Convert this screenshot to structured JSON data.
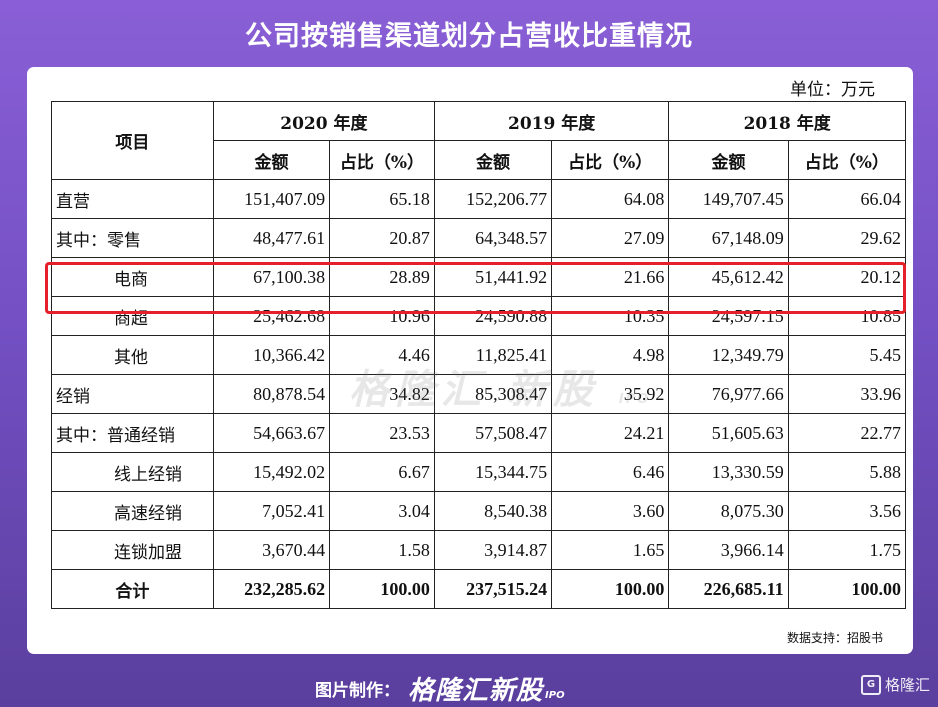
{
  "title": "公司按销售渠道划分占营收比重情况",
  "unit": "单位：万元",
  "table": {
    "years": [
      "2020 年度",
      "2019 年度",
      "2018 年度"
    ],
    "item_header": "项目",
    "amount_header": "金额",
    "pct_header": "占比（%）",
    "rows": [
      {
        "label": "直营",
        "values": [
          "151,407.09",
          "65.18",
          "152,206.77",
          "64.08",
          "149,707.45",
          "66.04"
        ]
      },
      {
        "label": "其中：零售",
        "values": [
          "48,477.61",
          "20.87",
          "64,348.57",
          "27.09",
          "67,148.09",
          "29.62"
        ]
      },
      {
        "label": "电商",
        "values": [
          "67,100.38",
          "28.89",
          "51,441.92",
          "21.66",
          "45,612.42",
          "20.12"
        ]
      },
      {
        "label": "商超",
        "values": [
          "25,462.68",
          "10.96",
          "24,590.88",
          "10.35",
          "24,597.15",
          "10.85"
        ]
      },
      {
        "label": "其他",
        "values": [
          "10,366.42",
          "4.46",
          "11,825.41",
          "4.98",
          "12,349.79",
          "5.45"
        ]
      },
      {
        "label": "经销",
        "values": [
          "80,878.54",
          "34.82",
          "85,308.47",
          "35.92",
          "76,977.66",
          "33.96"
        ]
      },
      {
        "label": "其中：普通经销",
        "values": [
          "54,663.67",
          "23.53",
          "57,508.47",
          "24.21",
          "51,605.63",
          "22.77"
        ]
      },
      {
        "label": "线上经销",
        "values": [
          "15,492.02",
          "6.67",
          "15,344.75",
          "6.46",
          "13,330.59",
          "5.88"
        ]
      },
      {
        "label": "高速经销",
        "values": [
          "7,052.41",
          "3.04",
          "8,540.38",
          "3.60",
          "8,075.30",
          "3.56"
        ]
      },
      {
        "label": "连锁加盟",
        "values": [
          "3,670.44",
          "1.58",
          "3,914.87",
          "1.65",
          "3,966.14",
          "1.75"
        ]
      },
      {
        "label": "合计",
        "values": [
          "232,285.62",
          "100.00",
          "237,515.24",
          "100.00",
          "226,685.11",
          "100.00"
        ]
      }
    ]
  },
  "watermark": {
    "text": "格隆汇 新股",
    "suffix": "IPO"
  },
  "source": "数据支持：招股书",
  "footer": {
    "credit_label": "图片制作：",
    "brand": "格隆汇新股",
    "brand_suffix": "IPO",
    "logo_text": "格隆汇",
    "logo_mark": "G"
  },
  "colors": {
    "background": "#7a55cc",
    "highlight": "#e5202a"
  }
}
